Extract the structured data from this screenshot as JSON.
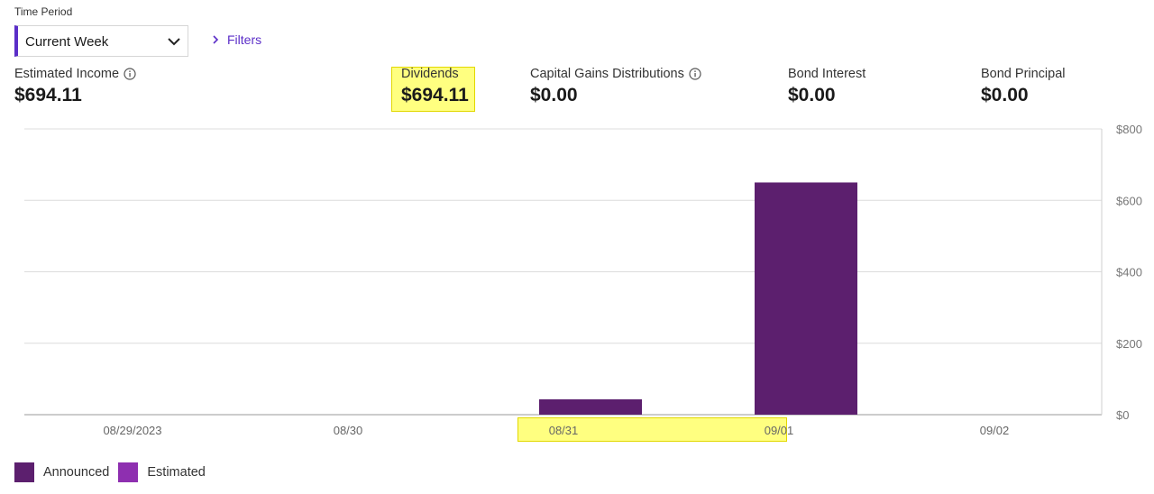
{
  "time_period": {
    "label": "Time Period",
    "value": "Current Week"
  },
  "filters_label": "Filters",
  "metrics": [
    {
      "label": "Estimated Income",
      "value": "$694.11",
      "info": true
    },
    {
      "label": "Dividends",
      "value": "$694.11",
      "info": false
    },
    {
      "label": "Capital Gains Distributions",
      "value": "$0.00",
      "info": true
    },
    {
      "label": "Bond Interest",
      "value": "$0.00",
      "info": false
    },
    {
      "label": "Bond Principal",
      "value": "$0.00",
      "info": false
    }
  ],
  "legend": [
    {
      "name": "Announced",
      "color": "#5c1f6e"
    },
    {
      "name": "Estimated",
      "color": "#8e2fb0"
    }
  ],
  "chart_data": {
    "type": "bar",
    "categories": [
      "08/29/2023",
      "08/30",
      "08/31",
      "09/01",
      "09/02"
    ],
    "series": [
      {
        "name": "Announced",
        "color": "#5c1f6e",
        "values": [
          0,
          0,
          43,
          650,
          0
        ]
      },
      {
        "name": "Estimated",
        "color": "#8e2fb0",
        "values": [
          0,
          0,
          0,
          0,
          0
        ]
      }
    ],
    "yticks": [
      "$800",
      "$600",
      "$400",
      "$200",
      "$0"
    ],
    "ylim": [
      0,
      800
    ],
    "grid": true,
    "legend_position": "bottom-left"
  }
}
